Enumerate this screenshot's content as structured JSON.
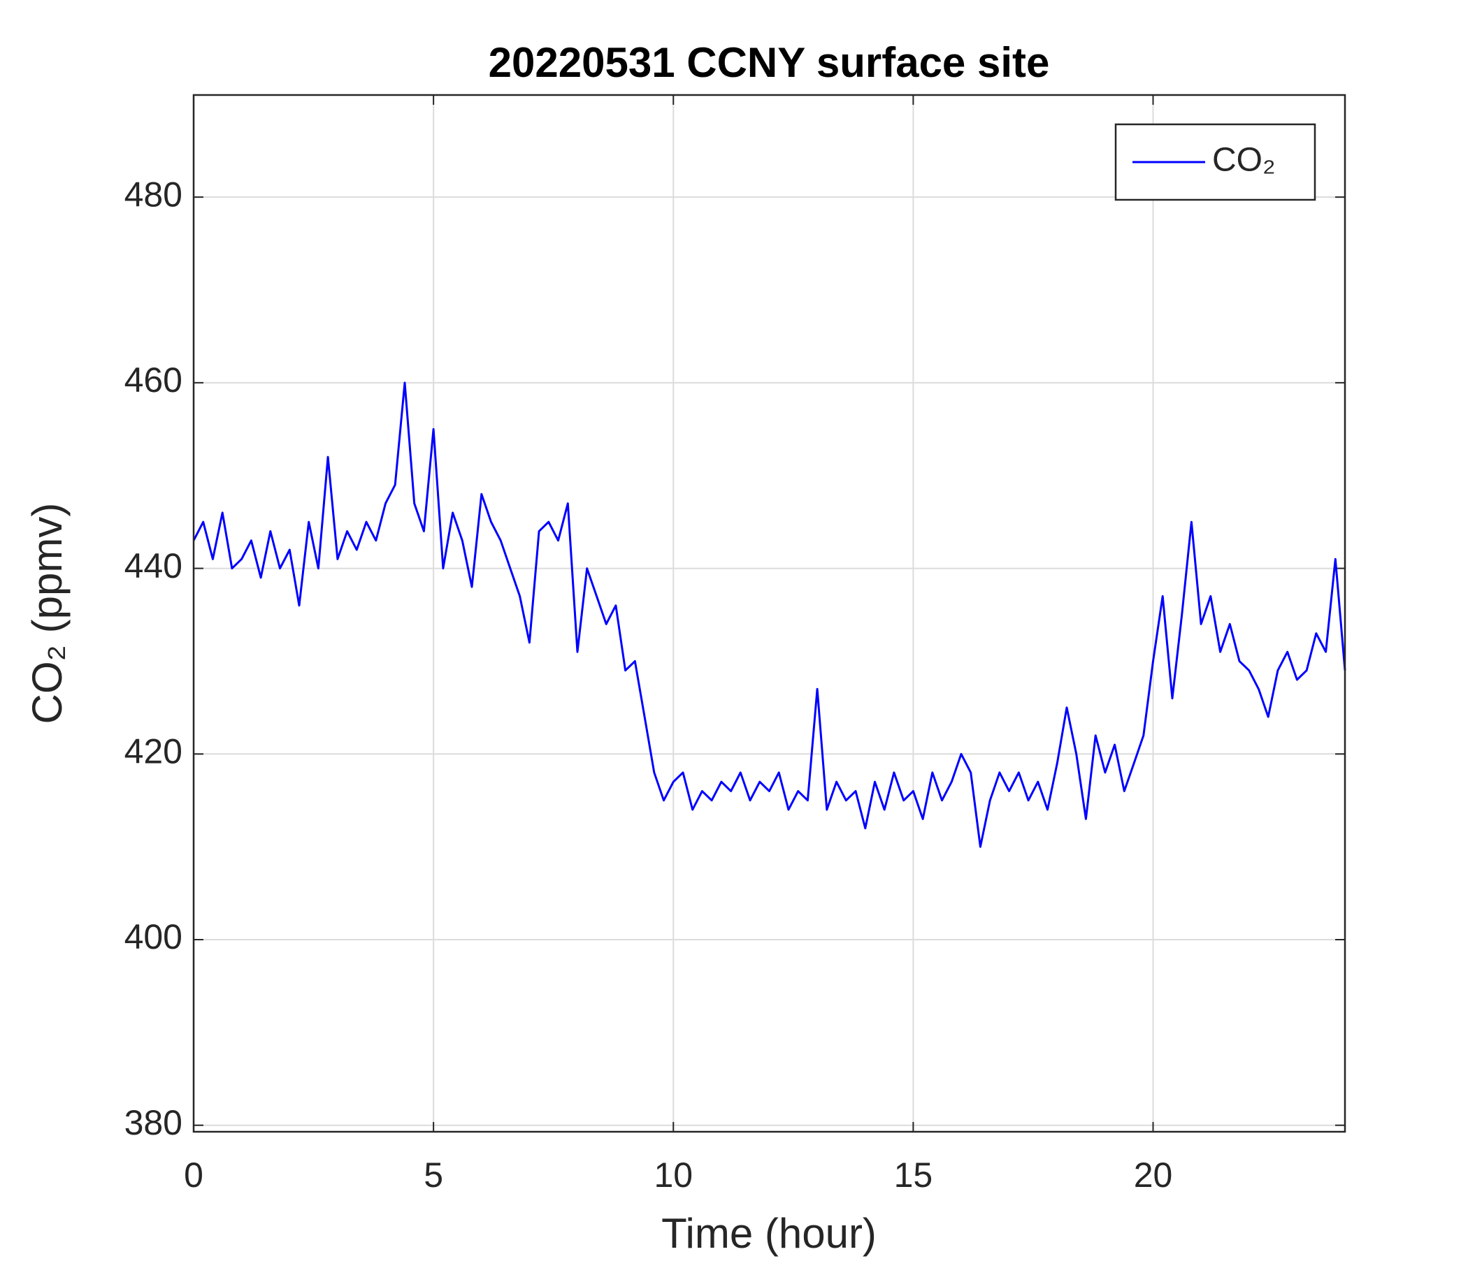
{
  "chart_data": {
    "type": "line",
    "title": "20220531 CCNY surface site",
    "x_label": "Time (hour)",
    "y_label": "CO₂ (ppmv)",
    "x": [
      0,
      0.2,
      0.4,
      0.6,
      0.8,
      1,
      1.2,
      1.4,
      1.6,
      1.8,
      2,
      2.2,
      2.4,
      2.6,
      2.8,
      3,
      3.2,
      3.4,
      3.6,
      3.8,
      4,
      4.2,
      4.4,
      4.6,
      4.8,
      5,
      5.2,
      5.4,
      5.6,
      5.8,
      6,
      6.2,
      6.4,
      6.6,
      6.8,
      7,
      7.2,
      7.4,
      7.6,
      7.8,
      8,
      8.2,
      8.4,
      8.6,
      8.8,
      9,
      9.2,
      9.4,
      9.6,
      9.8,
      10,
      10.2,
      10.4,
      10.6,
      10.8,
      11,
      11.2,
      11.4,
      11.6,
      11.8,
      12,
      12.2,
      12.4,
      12.6,
      12.8,
      13,
      13.2,
      13.4,
      13.6,
      13.8,
      14,
      14.2,
      14.4,
      14.6,
      14.8,
      15,
      15.2,
      15.4,
      15.6,
      15.8,
      16,
      16.2,
      16.4,
      16.6,
      16.8,
      17,
      17.2,
      17.4,
      17.6,
      17.8,
      18,
      18.2,
      18.4,
      18.6,
      18.8,
      19,
      19.2,
      19.4,
      19.6,
      19.8,
      20,
      20.2,
      20.4,
      20.6,
      20.8,
      21,
      21.2,
      21.4,
      21.6,
      21.8,
      22,
      22.2,
      22.4,
      22.6,
      22.8,
      23,
      23.2,
      23.4,
      23.6,
      23.8,
      24
    ],
    "series": [
      {
        "name": "CO₂",
        "color": "#0000ff",
        "values": [
          443,
          445,
          441,
          446,
          440,
          441,
          443,
          439,
          444,
          440,
          442,
          436,
          445,
          440,
          452,
          441,
          444,
          442,
          445,
          443,
          447,
          449,
          460,
          447,
          444,
          455,
          440,
          446,
          443,
          438,
          448,
          445,
          443,
          440,
          437,
          432,
          444,
          445,
          443,
          447,
          431,
          440,
          437,
          434,
          436,
          429,
          430,
          424,
          418,
          415,
          417,
          418,
          414,
          416,
          415,
          417,
          416,
          418,
          415,
          417,
          416,
          418,
          414,
          416,
          415,
          427,
          414,
          417,
          415,
          416,
          412,
          417,
          414,
          418,
          415,
          416,
          413,
          418,
          415,
          417,
          420,
          418,
          410,
          415,
          418,
          416,
          418,
          415,
          417,
          414,
          419,
          425,
          420,
          413,
          422,
          418,
          421,
          416,
          419,
          422,
          430,
          437,
          426,
          435,
          445,
          434,
          437,
          431,
          434,
          430,
          429,
          427,
          424,
          429,
          431,
          428,
          429,
          433,
          431,
          441,
          429
        ]
      }
    ],
    "xlim": [
      0,
      24
    ],
    "ylim": [
      379.3,
      491
    ],
    "xticks": [
      0,
      5,
      10,
      15,
      20
    ],
    "yticks": [
      380,
      400,
      420,
      440,
      460,
      480
    ],
    "grid": true,
    "legend": "upper right"
  }
}
